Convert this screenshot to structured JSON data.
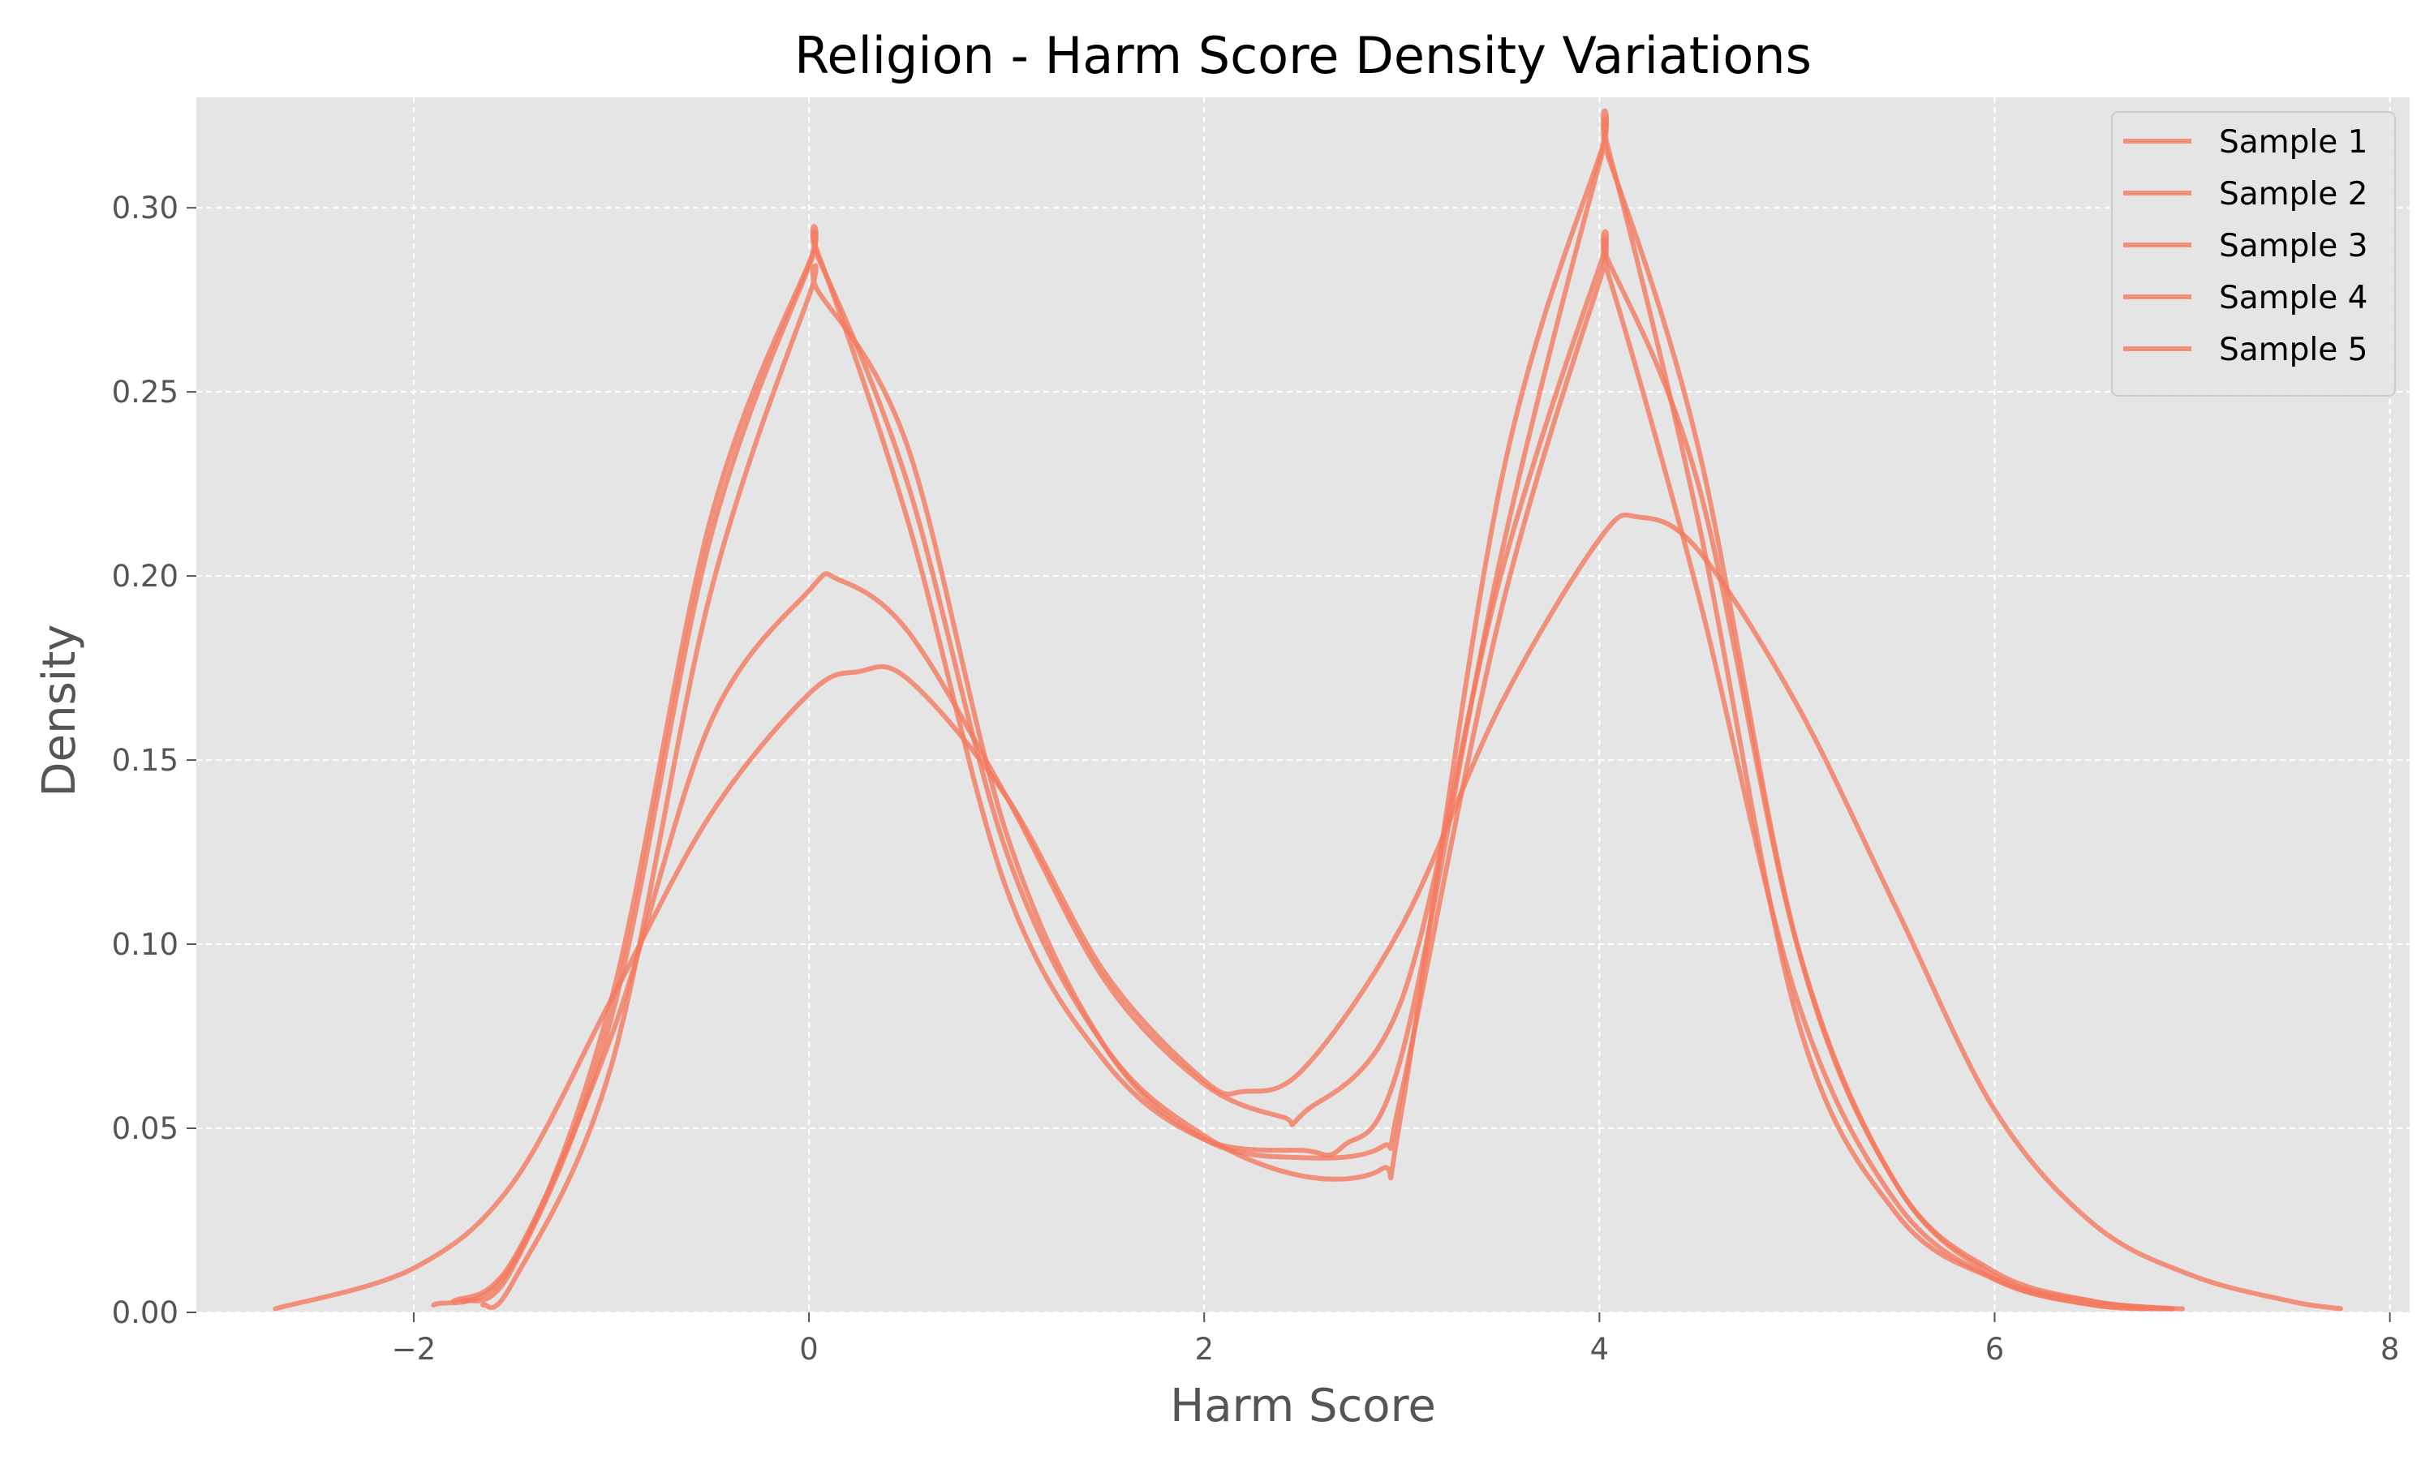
{
  "chart_data": {
    "type": "line",
    "title": "Religion - Harm Score Density Variations",
    "xlabel": "Harm Score",
    "ylabel": "Density",
    "xlim": [
      -3.1,
      8.1
    ],
    "ylim": [
      0,
      0.33
    ],
    "xticks": [
      {
        "value": -2,
        "label": "−2"
      },
      {
        "value": 0,
        "label": "0"
      },
      {
        "value": 2,
        "label": "2"
      },
      {
        "value": 4,
        "label": "4"
      },
      {
        "value": 6,
        "label": "6"
      },
      {
        "value": 8,
        "label": "8"
      }
    ],
    "yticks": [
      {
        "value": 0.0,
        "label": "0.00"
      },
      {
        "value": 0.05,
        "label": "0.05"
      },
      {
        "value": 0.1,
        "label": "0.10"
      },
      {
        "value": 0.15,
        "label": "0.15"
      },
      {
        "value": 0.2,
        "label": "0.20"
      },
      {
        "value": 0.25,
        "label": "0.25"
      },
      {
        "value": 0.3,
        "label": "0.30"
      }
    ],
    "grid": true,
    "legend_position": "top-right",
    "line_color": "#f4795d",
    "background_color": "#e5e5e5",
    "grid_color": "#ffffff",
    "series": [
      {
        "name": "Sample 1",
        "x": [
          -1.9,
          -1.5,
          -1.0,
          -0.5,
          0.0,
          0.05,
          0.5,
          1.0,
          1.5,
          2.0,
          2.5,
          2.7,
          3.0,
          3.5,
          4.0,
          4.05,
          4.5,
          5.0,
          5.5,
          6.0,
          6.5,
          6.9
        ],
        "y": [
          0.002,
          0.013,
          0.085,
          0.215,
          0.285,
          0.287,
          0.215,
          0.115,
          0.068,
          0.047,
          0.044,
          0.045,
          0.07,
          0.205,
          0.312,
          0.313,
          0.235,
          0.1,
          0.035,
          0.011,
          0.003,
          0.001
        ]
      },
      {
        "name": "Sample 2",
        "x": [
          -1.75,
          -1.5,
          -1.0,
          -0.5,
          0.0,
          0.05,
          0.5,
          1.0,
          1.5,
          2.0,
          2.5,
          2.9,
          3.0,
          3.5,
          4.0,
          4.05,
          4.5,
          5.0,
          5.5,
          6.0,
          6.5,
          6.95
        ],
        "y": [
          0.003,
          0.012,
          0.08,
          0.21,
          0.284,
          0.286,
          0.225,
          0.125,
          0.072,
          0.048,
          0.037,
          0.039,
          0.055,
          0.225,
          0.314,
          0.315,
          0.215,
          0.08,
          0.027,
          0.009,
          0.002,
          0.001
        ]
      },
      {
        "name": "Sample 3",
        "x": [
          -1.65,
          -1.5,
          -1.0,
          -0.5,
          0.0,
          0.05,
          0.5,
          1.0,
          1.5,
          2.0,
          2.5,
          2.9,
          3.0,
          3.5,
          4.0,
          4.05,
          4.5,
          5.0,
          5.5,
          6.0,
          6.5,
          6.9
        ],
        "y": [
          0.002,
          0.008,
          0.067,
          0.195,
          0.276,
          0.277,
          0.235,
          0.13,
          0.072,
          0.047,
          0.042,
          0.045,
          0.06,
          0.19,
          0.28,
          0.281,
          0.195,
          0.085,
          0.03,
          0.009,
          0.002,
          0.001
        ]
      },
      {
        "name": "Sample 4",
        "x": [
          -1.8,
          -1.5,
          -1.0,
          -0.5,
          0.0,
          0.15,
          0.5,
          1.0,
          1.5,
          2.0,
          2.4,
          2.5,
          3.0,
          3.5,
          4.0,
          4.05,
          4.5,
          5.0,
          5.5,
          6.0,
          6.5,
          6.9
        ],
        "y": [
          0.003,
          0.014,
          0.075,
          0.16,
          0.196,
          0.199,
          0.185,
          0.14,
          0.09,
          0.062,
          0.053,
          0.054,
          0.085,
          0.2,
          0.284,
          0.285,
          0.225,
          0.1,
          0.035,
          0.01,
          0.003,
          0.001
        ]
      },
      {
        "name": "Sample 5",
        "x": [
          -2.7,
          -2.0,
          -1.5,
          -1.0,
          -0.5,
          0.0,
          0.25,
          0.5,
          1.0,
          1.5,
          2.0,
          2.2,
          2.5,
          3.0,
          3.5,
          4.0,
          4.2,
          4.5,
          5.0,
          5.5,
          6.0,
          6.5,
          7.0,
          7.5,
          7.75
        ],
        "y": [
          0.001,
          0.012,
          0.035,
          0.085,
          0.135,
          0.168,
          0.174,
          0.172,
          0.14,
          0.092,
          0.063,
          0.06,
          0.066,
          0.105,
          0.165,
          0.21,
          0.216,
          0.207,
          0.165,
          0.11,
          0.055,
          0.024,
          0.01,
          0.003,
          0.001
        ]
      }
    ]
  }
}
